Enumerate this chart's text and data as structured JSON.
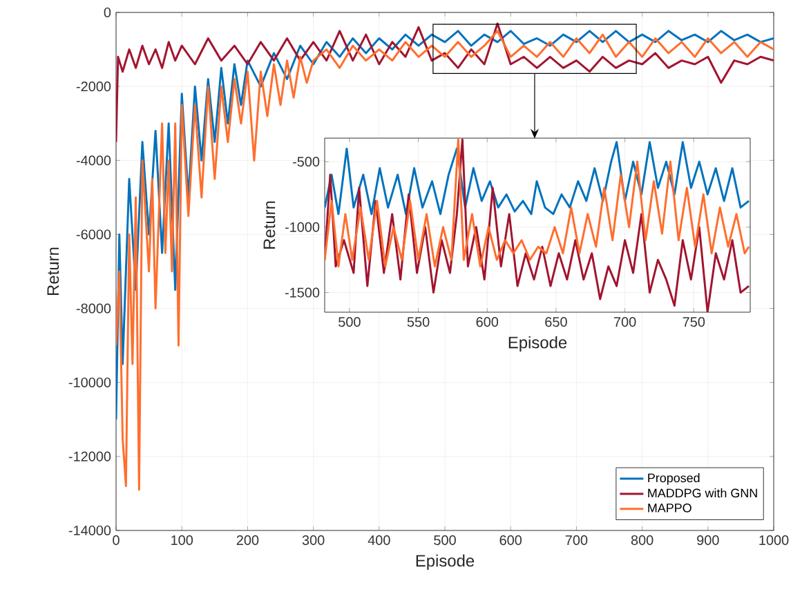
{
  "chart_data": [
    {
      "type": "line",
      "xlabel": "Episode",
      "ylabel": "Return",
      "xlim": [
        0,
        1000
      ],
      "ylim": [
        -14000,
        0
      ],
      "xticks": [
        0,
        100,
        200,
        300,
        400,
        500,
        600,
        700,
        800,
        900,
        1000
      ],
      "yticks": [
        -14000,
        -12000,
        -10000,
        -8000,
        -6000,
        -4000,
        -2000,
        0
      ],
      "grid": true,
      "legend": "bottom right",
      "series": [
        {
          "name": "Proposed",
          "color": "#0072bd",
          "x": [
            0,
            5,
            10,
            20,
            30,
            40,
            50,
            60,
            70,
            80,
            90,
            100,
            110,
            120,
            130,
            140,
            150,
            160,
            170,
            180,
            190,
            200,
            220,
            240,
            260,
            280,
            300,
            320,
            340,
            360,
            380,
            400,
            420,
            440,
            460,
            480,
            500,
            520,
            540,
            560,
            580,
            600,
            620,
            640,
            660,
            680,
            700,
            720,
            740,
            760,
            780,
            800,
            820,
            840,
            860,
            880,
            900,
            920,
            940,
            960,
            980,
            1000
          ],
          "values": [
            -11000,
            -6000,
            -9500,
            -4500,
            -7500,
            -3500,
            -6000,
            -3200,
            -6500,
            -3000,
            -7500,
            -2200,
            -5000,
            -2000,
            -4000,
            -1800,
            -3500,
            -1500,
            -3000,
            -1400,
            -2500,
            -1300,
            -2000,
            -1100,
            -1800,
            -900,
            -1400,
            -800,
            -1200,
            -700,
            -1100,
            -700,
            -1000,
            -600,
            -900,
            -600,
            -800,
            -500,
            -900,
            -600,
            -800,
            -500,
            -850,
            -700,
            -900,
            -600,
            -800,
            -500,
            -800,
            -500,
            -800,
            -600,
            -800,
            -500,
            -750,
            -600,
            -800,
            -500,
            -750,
            -600,
            -800,
            -700
          ]
        },
        {
          "name": "MADDPG with GNN",
          "color": "#a2142f",
          "x": [
            0,
            3,
            10,
            20,
            30,
            40,
            50,
            60,
            70,
            80,
            90,
            100,
            120,
            140,
            160,
            180,
            200,
            220,
            240,
            260,
            280,
            300,
            320,
            340,
            360,
            380,
            400,
            420,
            440,
            460,
            480,
            500,
            520,
            540,
            560,
            580,
            600,
            620,
            640,
            660,
            680,
            700,
            720,
            740,
            760,
            780,
            800,
            820,
            840,
            860,
            880,
            900,
            920,
            940,
            960,
            980,
            1000
          ],
          "values": [
            -3500,
            -1200,
            -1600,
            -1000,
            -1500,
            -900,
            -1400,
            -1000,
            -1500,
            -800,
            -1300,
            -900,
            -1400,
            -700,
            -1300,
            -900,
            -1400,
            -800,
            -1300,
            -700,
            -1300,
            -800,
            -1300,
            -500,
            -1300,
            -600,
            -1400,
            -800,
            -1200,
            -400,
            -1300,
            -1100,
            -1500,
            -1000,
            -1400,
            -300,
            -1400,
            -1200,
            -1500,
            -1200,
            -1500,
            -1300,
            -1600,
            -1200,
            -1500,
            -1300,
            -1400,
            -1100,
            -1500,
            -1300,
            -1400,
            -1200,
            -1900,
            -1300,
            -1400,
            -1200,
            -1300
          ]
        },
        {
          "name": "MAPPO",
          "color": "#ff6e2e",
          "x": [
            0,
            5,
            10,
            15,
            20,
            25,
            30,
            35,
            40,
            50,
            55,
            60,
            70,
            75,
            80,
            85,
            90,
            95,
            100,
            110,
            120,
            130,
            140,
            150,
            160,
            170,
            180,
            190,
            200,
            210,
            220,
            230,
            240,
            250,
            260,
            270,
            280,
            290,
            300,
            320,
            340,
            360,
            380,
            400,
            420,
            440,
            460,
            480,
            500,
            520,
            540,
            560,
            580,
            600,
            620,
            640,
            660,
            680,
            700,
            720,
            740,
            760,
            780,
            800,
            820,
            840,
            860,
            880,
            900,
            920,
            940,
            960,
            980,
            1000
          ],
          "values": [
            -9000,
            -7000,
            -11500,
            -12800,
            -6000,
            -9500,
            -5000,
            -12900,
            -4000,
            -7000,
            -4500,
            -8000,
            -3000,
            -6500,
            -4000,
            -7000,
            -3000,
            -9000,
            -2500,
            -5500,
            -2500,
            -5000,
            -2000,
            -4500,
            -2000,
            -3500,
            -1800,
            -3000,
            -1600,
            -4000,
            -1600,
            -2800,
            -1400,
            -2500,
            -1300,
            -2300,
            -1200,
            -1900,
            -1300,
            -1000,
            -1500,
            -900,
            -1300,
            -1000,
            -1300,
            -800,
            -1200,
            -900,
            -1200,
            -800,
            -1200,
            -900,
            -500,
            -1200,
            -900,
            -1200,
            -800,
            -1200,
            -700,
            -1100,
            -600,
            -1200,
            -800,
            -1200,
            -700,
            -1100,
            -800,
            -1200,
            -700,
            -1100,
            -800,
            -1200,
            -800,
            -1000
          ]
        }
      ]
    },
    {
      "type": "line",
      "xlabel": "Episode",
      "ylabel": "Return",
      "xlim": [
        482,
        791
      ],
      "ylim": [
        -1650,
        -320
      ],
      "xticks": [
        500,
        550,
        600,
        650,
        700,
        750
      ],
      "yticks": [
        -1500,
        -1000,
        -500
      ],
      "grid": true,
      "series": [
        {
          "color": "#0072bd",
          "x": [
            482,
            487,
            492,
            498,
            503,
            510,
            516,
            522,
            528,
            535,
            541,
            547,
            553,
            560,
            566,
            572,
            578,
            584,
            590,
            596,
            602,
            608,
            614,
            620,
            626,
            632,
            636,
            642,
            648,
            654,
            660,
            666,
            672,
            678,
            684,
            690,
            694,
            700,
            706,
            712,
            718,
            724,
            730,
            736,
            742,
            748,
            754,
            760,
            766,
            772,
            778,
            784,
            790
          ],
          "values": [
            -850,
            -600,
            -900,
            -400,
            -850,
            -600,
            -900,
            -550,
            -850,
            -600,
            -900,
            -550,
            -850,
            -650,
            -900,
            -600,
            -400,
            -850,
            -550,
            -800,
            -650,
            -850,
            -750,
            -880,
            -800,
            -900,
            -650,
            -850,
            -900,
            -750,
            -850,
            -650,
            -800,
            -550,
            -800,
            -500,
            -350,
            -800,
            -500,
            -750,
            -350,
            -700,
            -500,
            -750,
            -350,
            -700,
            -500,
            -750,
            -550,
            -800,
            -550,
            -850,
            -800
          ]
        },
        {
          "color": "#a2142f",
          "x": [
            482,
            486,
            490,
            496,
            503,
            507,
            513,
            519,
            525,
            531,
            537,
            543,
            549,
            555,
            561,
            567,
            573,
            578,
            582,
            586,
            592,
            598,
            604,
            610,
            616,
            622,
            628,
            634,
            640,
            646,
            652,
            658,
            664,
            670,
            676,
            682,
            688,
            694,
            700,
            706,
            712,
            718,
            724,
            730,
            736,
            742,
            748,
            754,
            760,
            766,
            772,
            778,
            784,
            790
          ],
          "values": [
            -1250,
            -600,
            -1300,
            -1100,
            -1350,
            -700,
            -1450,
            -800,
            -1350,
            -900,
            -1400,
            -750,
            -1350,
            -1000,
            -1500,
            -1100,
            -1350,
            -900,
            -330,
            -1300,
            -1000,
            -1400,
            -700,
            -1300,
            -900,
            -1450,
            -1200,
            -1400,
            -1150,
            -1450,
            -1200,
            -1400,
            -1100,
            -1400,
            -1200,
            -1550,
            -1300,
            -1450,
            -1100,
            -1350,
            -900,
            -1500,
            -1250,
            -1400,
            -1600,
            -1100,
            -1400,
            -1000,
            -1650,
            -1200,
            -1400,
            -1100,
            -1500,
            -1450
          ]
        },
        {
          "color": "#ff6e2e",
          "x": [
            482,
            487,
            492,
            497,
            502,
            508,
            514,
            520,
            526,
            532,
            538,
            544,
            550,
            556,
            562,
            568,
            574,
            579,
            583,
            589,
            595,
            601,
            607,
            613,
            619,
            625,
            631,
            637,
            643,
            649,
            655,
            661,
            667,
            673,
            679,
            685,
            691,
            697,
            703,
            709,
            715,
            721,
            727,
            733,
            739,
            745,
            751,
            757,
            763,
            769,
            775,
            781,
            787,
            790
          ],
          "values": [
            -1250,
            -800,
            -1300,
            -900,
            -1250,
            -850,
            -1250,
            -800,
            -1300,
            -1000,
            -1250,
            -800,
            -1250,
            -900,
            -1300,
            -1000,
            -1250,
            -330,
            -1250,
            -900,
            -1300,
            -1000,
            -1250,
            -1100,
            -1200,
            -1100,
            -1250,
            -1150,
            -1200,
            -1000,
            -1200,
            -850,
            -1200,
            -900,
            -1150,
            -700,
            -1100,
            -600,
            -1000,
            -500,
            -1100,
            -650,
            -1050,
            -500,
            -1100,
            -700,
            -1150,
            -750,
            -1200,
            -850,
            -1150,
            -900,
            -1200,
            -1150
          ]
        }
      ]
    }
  ]
}
